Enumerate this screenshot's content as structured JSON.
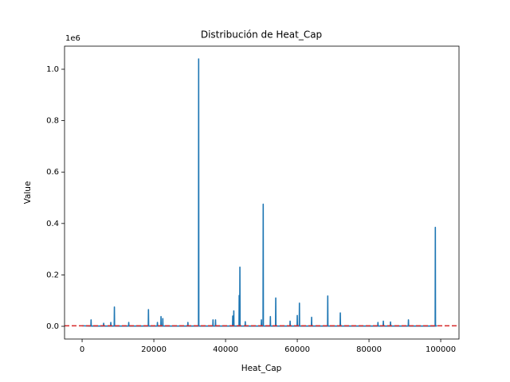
{
  "chart_data": {
    "type": "line",
    "title": "Distribución de Heat_Cap",
    "x_label": "Heat_Cap",
    "y_label": "Value",
    "y_offset_label": "1e6",
    "x": [
      0,
      2450,
      2500,
      2550,
      5950,
      6000,
      6050,
      7950,
      8000,
      8050,
      8950,
      9000,
      9050,
      12950,
      13000,
      13050,
      18450,
      18500,
      18550,
      20950,
      21000,
      21050,
      21950,
      22000,
      22050,
      22450,
      22500,
      22550,
      29450,
      29500,
      29550,
      32450,
      32500,
      32550,
      36450,
      36500,
      36550,
      37150,
      37200,
      37250,
      41950,
      42000,
      42050,
      42250,
      42300,
      42350,
      43750,
      43800,
      43850,
      43950,
      44000,
      44050,
      45450,
      45500,
      45550,
      49950,
      50000,
      50050,
      50450,
      50500,
      50550,
      52450,
      52500,
      52550,
      53950,
      54000,
      54050,
      57950,
      58000,
      58050,
      59950,
      60000,
      60050,
      60550,
      60600,
      60650,
      63950,
      64000,
      64050,
      68450,
      68500,
      68550,
      71950,
      72000,
      72050,
      82450,
      82500,
      82550,
      83950,
      84000,
      84050,
      85950,
      86000,
      86050,
      90950,
      91000,
      91050,
      98450,
      98500,
      98550,
      99000
    ],
    "series": [
      {
        "name": "Heat_Cap",
        "color": "#1f77b4",
        "values": [
          2000,
          1000,
          25000,
          1000,
          1000,
          12000,
          1000,
          1000,
          15000,
          1000,
          1000,
          75000,
          1000,
          1000,
          15000,
          1000,
          1000,
          65000,
          1000,
          1000,
          15000,
          1000,
          1000,
          38000,
          1000,
          1000,
          30000,
          1000,
          1000,
          15000,
          1000,
          1000,
          1040000,
          1000,
          1000,
          25000,
          1000,
          1000,
          25000,
          1000,
          1000,
          40000,
          1000,
          1000,
          60000,
          1000,
          1000,
          120000,
          1000,
          1000,
          230000,
          1000,
          1000,
          18000,
          1000,
          1000,
          25000,
          1000,
          1000,
          475000,
          1000,
          1000,
          38000,
          1000,
          1000,
          110000,
          1000,
          1000,
          20000,
          1000,
          1000,
          42000,
          1000,
          1000,
          90000,
          1000,
          1000,
          35000,
          1000,
          1000,
          118000,
          1000,
          1000,
          52000,
          1000,
          1000,
          15000,
          1000,
          1000,
          20000,
          1000,
          1000,
          17000,
          1000,
          1000,
          25000,
          1000,
          1000,
          385000,
          1000,
          2000
        ]
      }
    ],
    "hline": {
      "y": 2000,
      "color": "#d62728"
    },
    "xlim": [
      -4900,
      105100
    ],
    "ylim": [
      -49500,
      1089800
    ],
    "xticks": [
      0,
      20000,
      40000,
      60000,
      80000,
      100000
    ],
    "yticks": [
      {
        "value": 0,
        "label": "0.0"
      },
      {
        "value": 200000,
        "label": "0.2"
      },
      {
        "value": 400000,
        "label": "0.4"
      },
      {
        "value": 600000,
        "label": "0.6"
      },
      {
        "value": 800000,
        "label": "0.8"
      },
      {
        "value": 1000000,
        "label": "1.0"
      }
    ]
  }
}
